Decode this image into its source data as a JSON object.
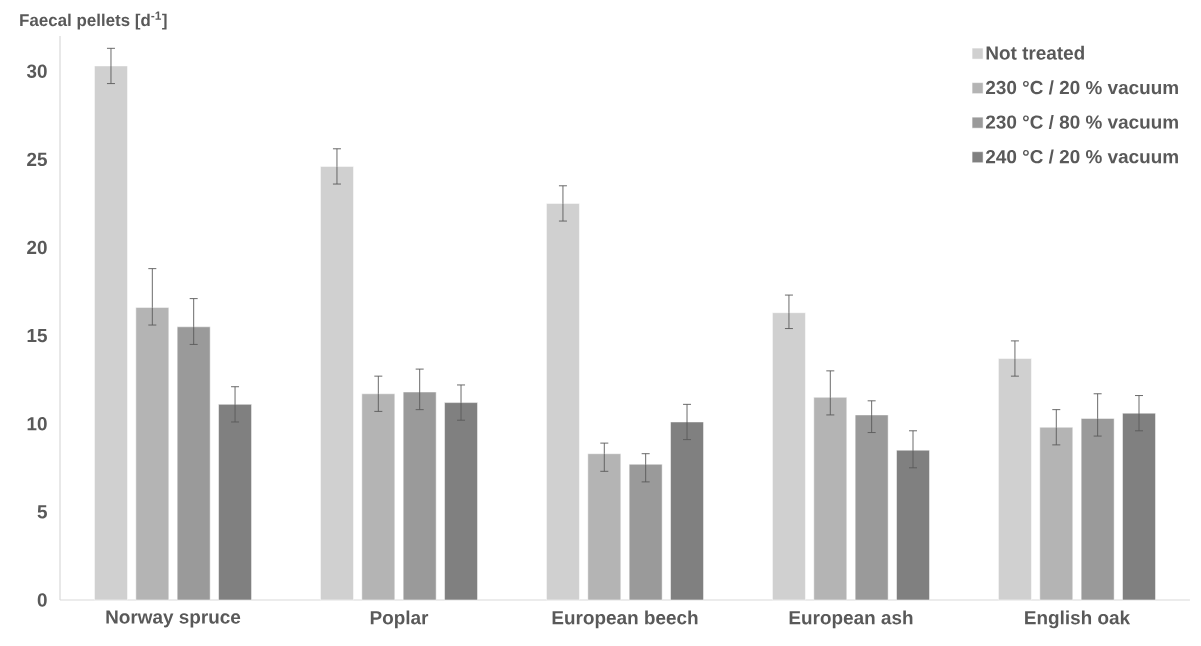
{
  "chart_data": {
    "type": "bar",
    "ylabel": "Faecal pellets [d$^{-1}$]",
    "categories": [
      "Norway spruce",
      "Poplar",
      "European beech",
      "European ash",
      "English oak"
    ],
    "series": [
      {
        "name": "Not treated",
        "color": "#d0d0d0",
        "values": [
          30.3,
          24.6,
          22.5,
          16.3,
          13.7
        ],
        "errors": [
          [
            29.3,
            31.3
          ],
          [
            23.6,
            25.6
          ],
          [
            21.5,
            23.5
          ],
          [
            15.4,
            17.3
          ],
          [
            12.7,
            14.7
          ]
        ]
      },
      {
        "name": "230 °C / 20 % vacuum",
        "color": "#b4b4b4",
        "values": [
          16.6,
          11.7,
          8.3,
          11.5,
          9.8
        ],
        "errors": [
          [
            15.6,
            18.8
          ],
          [
            10.7,
            12.7
          ],
          [
            7.3,
            8.9
          ],
          [
            10.5,
            13.0
          ],
          [
            8.8,
            10.8
          ]
        ]
      },
      {
        "name": "230 °C / 80 % vacuum",
        "color": "#9a9a9a",
        "values": [
          15.5,
          11.8,
          7.7,
          10.5,
          10.3
        ],
        "errors": [
          [
            14.5,
            17.1
          ],
          [
            10.8,
            13.1
          ],
          [
            6.7,
            8.3
          ],
          [
            9.5,
            11.3
          ],
          [
            9.3,
            11.7
          ]
        ]
      },
      {
        "name": "240 °C / 20 % vacuum",
        "color": "#808080",
        "values": [
          11.1,
          11.2,
          10.1,
          8.5,
          10.6
        ],
        "errors": [
          [
            10.1,
            12.1
          ],
          [
            10.2,
            12.2
          ],
          [
            9.1,
            11.1
          ],
          [
            7.5,
            9.6
          ],
          [
            9.6,
            11.6
          ]
        ]
      }
    ],
    "ylim": [
      0,
      32
    ],
    "yticks": [
      0,
      5,
      10,
      15,
      20,
      25,
      30
    ],
    "legend": "top right"
  }
}
